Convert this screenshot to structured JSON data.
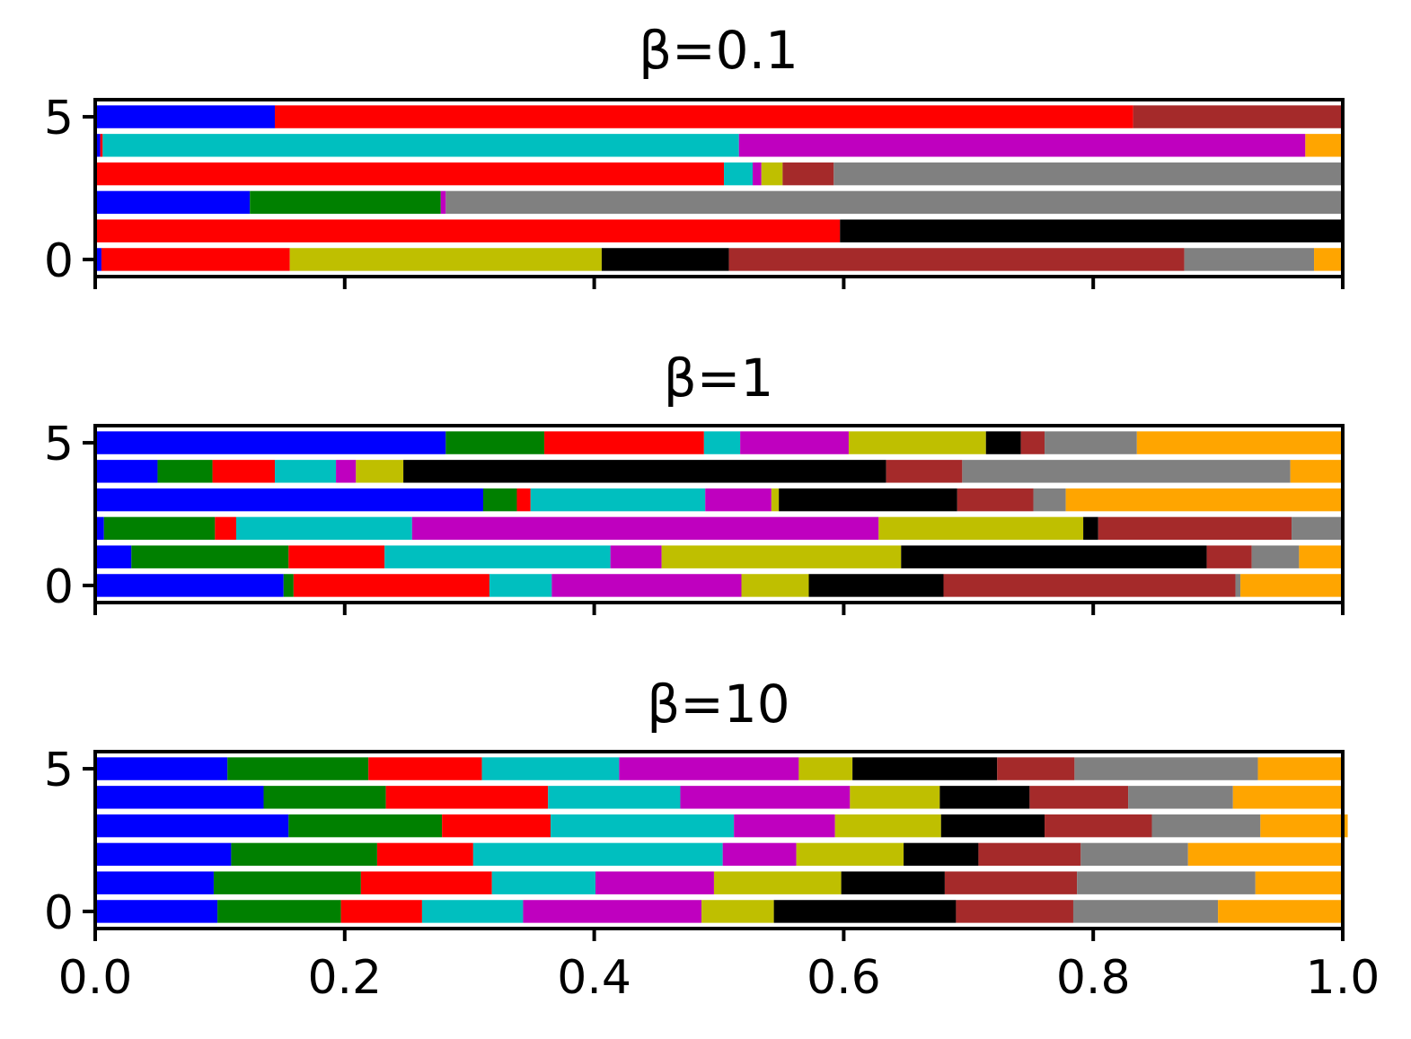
{
  "colors": [
    "#0000ff",
    "#008000",
    "#ff0000",
    "#00bfbf",
    "#bf00bf",
    "#bfbf00",
    "#000000",
    "#a52a2a",
    "#808080",
    "#ffa500"
  ],
  "chart_data": [
    {
      "type": "bar",
      "orientation": "horizontal-stacked",
      "title": "β=0.1",
      "rows": [
        0,
        1,
        2,
        3,
        4,
        5
      ],
      "xlim": [
        0,
        1
      ],
      "ylim": [
        -0.6,
        5.6
      ],
      "yticks": [
        "0",
        "5"
      ],
      "xticks": [],
      "values": [
        [
          0.005,
          0.0,
          0.151,
          0.0,
          0.0,
          0.25,
          0.102,
          0.365,
          0.104,
          0.023
        ],
        [
          0.0,
          0.0,
          0.597,
          0.0,
          0.0,
          0.0,
          0.403,
          0.0,
          0.0,
          0.0
        ],
        [
          0.124,
          0.153,
          0.0,
          0.0,
          0.004,
          0.0,
          0.0,
          0.0,
          0.719,
          0.0
        ],
        [
          0.0,
          0.0,
          0.504,
          0.023,
          0.007,
          0.017,
          0.0,
          0.041,
          0.408,
          0.0
        ],
        [
          0.004,
          0.0,
          0.002,
          0.51,
          0.454,
          0.0,
          0.0,
          0.0,
          0.0,
          0.03
        ],
        [
          0.144,
          0.0,
          0.688,
          0.0,
          0.0,
          0.0,
          0.0,
          0.168,
          0.0,
          0.0
        ]
      ]
    },
    {
      "type": "bar",
      "orientation": "horizontal-stacked",
      "title": "β=1",
      "rows": [
        0,
        1,
        2,
        3,
        4,
        5
      ],
      "xlim": [
        0,
        1
      ],
      "ylim": [
        -0.6,
        5.6
      ],
      "yticks": [
        "0",
        "5"
      ],
      "xticks": [],
      "values": [
        [
          0.151,
          0.008,
          0.157,
          0.05,
          0.152,
          0.054,
          0.108,
          0.234,
          0.004,
          0.082
        ],
        [
          0.029,
          0.126,
          0.077,
          0.181,
          0.041,
          0.192,
          0.245,
          0.036,
          0.038,
          0.035
        ],
        [
          0.007,
          0.089,
          0.017,
          0.141,
          0.374,
          0.164,
          0.012,
          0.155,
          0.041,
          0.0
        ],
        [
          0.311,
          0.027,
          0.011,
          0.14,
          0.053,
          0.006,
          0.143,
          0.061,
          0.026,
          0.222
        ],
        [
          0.05,
          0.044,
          0.05,
          0.049,
          0.016,
          0.038,
          0.387,
          0.061,
          0.263,
          0.042
        ],
        [
          0.281,
          0.079,
          0.128,
          0.029,
          0.087,
          0.11,
          0.028,
          0.019,
          0.074,
          0.165
        ]
      ]
    },
    {
      "type": "bar",
      "orientation": "horizontal-stacked",
      "title": "β=10",
      "rows": [
        0,
        1,
        2,
        3,
        4,
        5
      ],
      "xlim": [
        0,
        1
      ],
      "ylim": [
        -0.6,
        5.6
      ],
      "yticks": [
        "0",
        "5"
      ],
      "xticks": [
        "0.0",
        "0.2",
        "0.4",
        "0.6",
        "0.8",
        "1.0"
      ],
      "values": [
        [
          0.098,
          0.099,
          0.065,
          0.081,
          0.143,
          0.058,
          0.146,
          0.094,
          0.116,
          0.1
        ],
        [
          0.095,
          0.118,
          0.105,
          0.083,
          0.095,
          0.102,
          0.083,
          0.106,
          0.143,
          0.07
        ],
        [
          0.109,
          0.117,
          0.077,
          0.2,
          0.059,
          0.086,
          0.06,
          0.082,
          0.086,
          0.124
        ],
        [
          0.155,
          0.123,
          0.087,
          0.147,
          0.081,
          0.085,
          0.083,
          0.086,
          0.087,
          0.07
        ],
        [
          0.135,
          0.098,
          0.13,
          0.106,
          0.136,
          0.072,
          0.072,
          0.079,
          0.084,
          0.088
        ],
        [
          0.106,
          0.113,
          0.091,
          0.11,
          0.144,
          0.043,
          0.116,
          0.062,
          0.147,
          0.068
        ]
      ]
    }
  ]
}
